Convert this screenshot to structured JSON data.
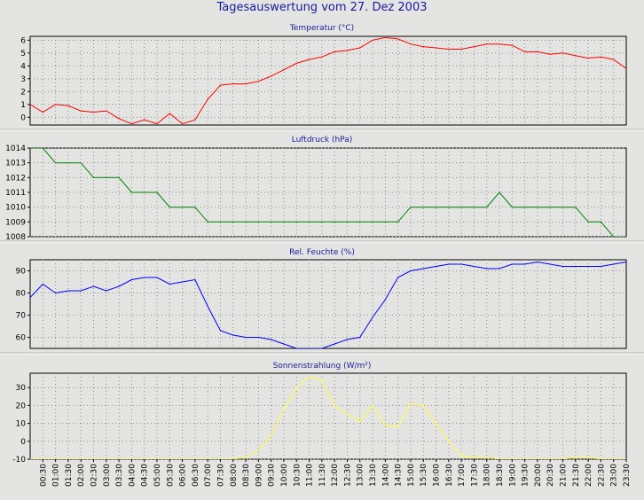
{
  "title": "Tagesauswertung vom 27. Dez 2003",
  "colors": {
    "background": "#e4e4e2",
    "title": "#1a1aa0",
    "grid": "#8c8c8c"
  },
  "x_tick_labels": [
    "00:30",
    "01:00",
    "01:30",
    "02:00",
    "02:30",
    "03:00",
    "03:30",
    "04:00",
    "04:30",
    "05:00",
    "05:30",
    "06:00",
    "06:30",
    "07:00",
    "07:30",
    "08:00",
    "08:30",
    "09:00",
    "09:30",
    "10:00",
    "10:30",
    "11:00",
    "11:30",
    "12:00",
    "12:30",
    "13:00",
    "13:30",
    "14:00",
    "14:30",
    "15:00",
    "15:30",
    "16:00",
    "16:30",
    "17:00",
    "17:30",
    "18:00",
    "18:30",
    "19:00",
    "19:30",
    "20:00",
    "20:30",
    "21:00",
    "21:30",
    "22:00",
    "22:30",
    "23:00",
    "23:30"
  ],
  "chart_data": [
    {
      "type": "line",
      "title": "Temperatur (°C)",
      "color": "#ff0000",
      "ylim": [
        -0.6,
        6.3
      ],
      "yticks": [
        0,
        1,
        2,
        3,
        4,
        5,
        6
      ],
      "x": [
        "00:00",
        "00:30",
        "01:00",
        "01:30",
        "02:00",
        "02:30",
        "03:00",
        "03:30",
        "04:00",
        "04:30",
        "05:00",
        "05:30",
        "06:00",
        "06:30",
        "07:00",
        "07:30",
        "08:00",
        "08:30",
        "09:00",
        "09:30",
        "10:00",
        "10:30",
        "11:00",
        "11:30",
        "12:00",
        "12:30",
        "13:00",
        "13:30",
        "14:00",
        "14:30",
        "15:00",
        "15:30",
        "16:00",
        "16:30",
        "17:00",
        "17:30",
        "18:00",
        "18:30",
        "19:00",
        "19:30",
        "20:00",
        "20:30",
        "21:00",
        "21:30",
        "22:00",
        "22:30",
        "23:00",
        "23:30"
      ],
      "values": [
        1.0,
        0.4,
        1.0,
        0.9,
        0.5,
        0.4,
        0.5,
        -0.1,
        -0.5,
        -0.2,
        -0.5,
        0.3,
        -0.5,
        -0.2,
        1.4,
        2.5,
        2.6,
        2.6,
        2.8,
        3.2,
        3.7,
        4.2,
        4.5,
        4.7,
        5.1,
        5.2,
        5.4,
        6.0,
        6.2,
        6.1,
        5.7,
        5.5,
        5.4,
        5.3,
        5.3,
        5.5,
        5.7,
        5.7,
        5.6,
        5.1,
        5.1,
        4.9,
        5.0,
        4.8,
        4.6,
        4.7,
        4.5,
        3.8
      ]
    },
    {
      "type": "line",
      "title": "Luftdruck (hPa)",
      "color": "#008000",
      "ylim": [
        1008,
        1014
      ],
      "yticks": [
        1008,
        1009,
        1010,
        1011,
        1012,
        1013,
        1014
      ],
      "x": [
        "00:00",
        "00:30",
        "01:00",
        "01:30",
        "02:00",
        "02:30",
        "03:00",
        "03:30",
        "04:00",
        "04:30",
        "05:00",
        "05:30",
        "06:00",
        "06:30",
        "07:00",
        "07:30",
        "08:00",
        "08:30",
        "09:00",
        "09:30",
        "10:00",
        "10:30",
        "11:00",
        "11:30",
        "12:00",
        "12:30",
        "13:00",
        "13:30",
        "14:00",
        "14:30",
        "15:00",
        "15:30",
        "16:00",
        "16:30",
        "17:00",
        "17:30",
        "18:00",
        "18:30",
        "19:00",
        "19:30",
        "20:00",
        "20:30",
        "21:00",
        "21:30",
        "22:00",
        "22:30",
        "23:00",
        "23:30"
      ],
      "values": [
        1014,
        1014,
        1013,
        1013,
        1013,
        1012,
        1012,
        1012,
        1011,
        1011,
        1011,
        1010,
        1010,
        1010,
        1009,
        1009,
        1009,
        1009,
        1009,
        1009,
        1009,
        1009,
        1009,
        1009,
        1009,
        1009,
        1009,
        1009,
        1009,
        1009,
        1010,
        1010,
        1010,
        1010,
        1010,
        1010,
        1010,
        1011,
        1010,
        1010,
        1010,
        1010,
        1010,
        1010,
        1009,
        1009,
        1008,
        1008
      ]
    },
    {
      "type": "line",
      "title": "Rel. Feuchte (%)",
      "color": "#0000ff",
      "ylim": [
        55,
        95
      ],
      "yticks": [
        60,
        70,
        80,
        90
      ],
      "x": [
        "00:00",
        "00:30",
        "01:00",
        "01:30",
        "02:00",
        "02:30",
        "03:00",
        "03:30",
        "04:00",
        "04:30",
        "05:00",
        "05:30",
        "06:00",
        "06:30",
        "07:00",
        "07:30",
        "08:00",
        "08:30",
        "09:00",
        "09:30",
        "10:00",
        "10:30",
        "11:00",
        "11:30",
        "12:00",
        "12:30",
        "13:00",
        "13:30",
        "14:00",
        "14:30",
        "15:00",
        "15:30",
        "16:00",
        "16:30",
        "17:00",
        "17:30",
        "18:00",
        "18:30",
        "19:00",
        "19:30",
        "20:00",
        "20:30",
        "21:00",
        "21:30",
        "22:00",
        "22:30",
        "23:00",
        "23:30"
      ],
      "values": [
        78,
        84,
        80,
        81,
        81,
        83,
        81,
        83,
        86,
        87,
        87,
        84,
        85,
        86,
        74,
        63,
        61,
        60,
        60,
        59,
        57,
        55,
        55,
        55,
        57,
        59,
        60,
        69,
        77,
        87,
        90,
        91,
        92,
        93,
        93,
        92,
        91,
        91,
        93,
        93,
        94,
        93,
        92,
        92,
        92,
        92,
        93,
        94
      ]
    },
    {
      "type": "line",
      "title": "Sonnenstrahlung (W/m²)",
      "color": "#ffff40",
      "ylim": [
        -10,
        38
      ],
      "yticks": [
        -10,
        0,
        10,
        20,
        30
      ],
      "x": [
        "00:00",
        "00:30",
        "01:00",
        "01:30",
        "02:00",
        "02:30",
        "03:00",
        "03:30",
        "04:00",
        "04:30",
        "05:00",
        "05:30",
        "06:00",
        "06:30",
        "07:00",
        "07:30",
        "08:00",
        "08:30",
        "09:00",
        "09:30",
        "10:00",
        "10:30",
        "11:00",
        "11:30",
        "12:00",
        "12:30",
        "13:00",
        "13:30",
        "14:00",
        "14:30",
        "15:00",
        "15:30",
        "16:00",
        "16:30",
        "17:00",
        "17:30",
        "18:00",
        "18:30",
        "19:00",
        "19:30",
        "20:00",
        "20:30",
        "21:00",
        "21:30",
        "22:00",
        "22:30",
        "23:00",
        "23:30"
      ],
      "values": [
        -10,
        -10,
        -10,
        -10,
        -10,
        -10,
        -10,
        -10,
        -10,
        -10,
        -10,
        -10,
        -10,
        -10,
        -10,
        -10,
        -10,
        -9,
        -5,
        3,
        18,
        30,
        36,
        34,
        20,
        15,
        11,
        20,
        9,
        8,
        21,
        20,
        10,
        0,
        -8,
        -9,
        -9,
        -10,
        -10,
        -10,
        -10,
        -10,
        -10,
        -9,
        -9,
        -10,
        -10,
        -10
      ]
    }
  ]
}
